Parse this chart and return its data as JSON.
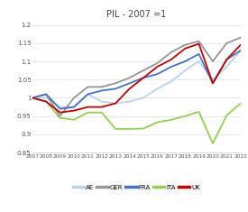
{
  "title": "PIL - 2007 =1",
  "years": [
    2007,
    2008,
    2009,
    2010,
    2011,
    2012,
    2013,
    2014,
    2015,
    2016,
    2017,
    2018,
    2019,
    2020,
    2021,
    2022
  ],
  "series": {
    "AE": [
      1.0,
      1.0,
      0.975,
      0.975,
      1.01,
      0.99,
      0.985,
      0.99,
      1.0,
      1.025,
      1.045,
      1.075,
      1.1,
      1.05,
      1.085,
      1.13
    ],
    "GER": [
      1.0,
      1.01,
      0.95,
      1.0,
      1.03,
      1.03,
      1.04,
      1.055,
      1.075,
      1.095,
      1.125,
      1.145,
      1.155,
      1.1,
      1.15,
      1.165
    ],
    "FRA": [
      1.0,
      1.01,
      0.97,
      0.975,
      1.01,
      1.02,
      1.025,
      1.04,
      1.055,
      1.065,
      1.085,
      1.1,
      1.12,
      1.04,
      1.105,
      1.13
    ],
    "ITA": [
      1.0,
      0.99,
      0.945,
      0.94,
      0.96,
      0.96,
      0.915,
      0.915,
      0.916,
      0.933,
      0.94,
      0.95,
      0.962,
      0.875,
      0.952,
      0.985
    ],
    "UK": [
      1.0,
      0.99,
      0.96,
      0.965,
      0.975,
      0.975,
      0.985,
      1.025,
      1.055,
      1.085,
      1.105,
      1.135,
      1.148,
      1.04,
      1.105,
      1.145
    ]
  },
  "colors": {
    "AE": "#b8d4ec",
    "GER": "#969696",
    "FRA": "#4472c4",
    "ITA": "#92d050",
    "UK": "#c00000"
  },
  "ylim": [
    0.85,
    1.21
  ],
  "yticks": [
    0.85,
    0.9,
    0.95,
    1.0,
    1.05,
    1.1,
    1.15,
    1.2
  ],
  "ytick_labels": [
    "0.85",
    "0.9",
    "0.95",
    "1",
    "1.05",
    "1.1",
    "1.15",
    "1.2"
  ],
  "legend_order": [
    "AE",
    "GER",
    "FRA",
    "ITA",
    "UK"
  ],
  "linewidth": 1.3,
  "bg_color": "#ffffff"
}
